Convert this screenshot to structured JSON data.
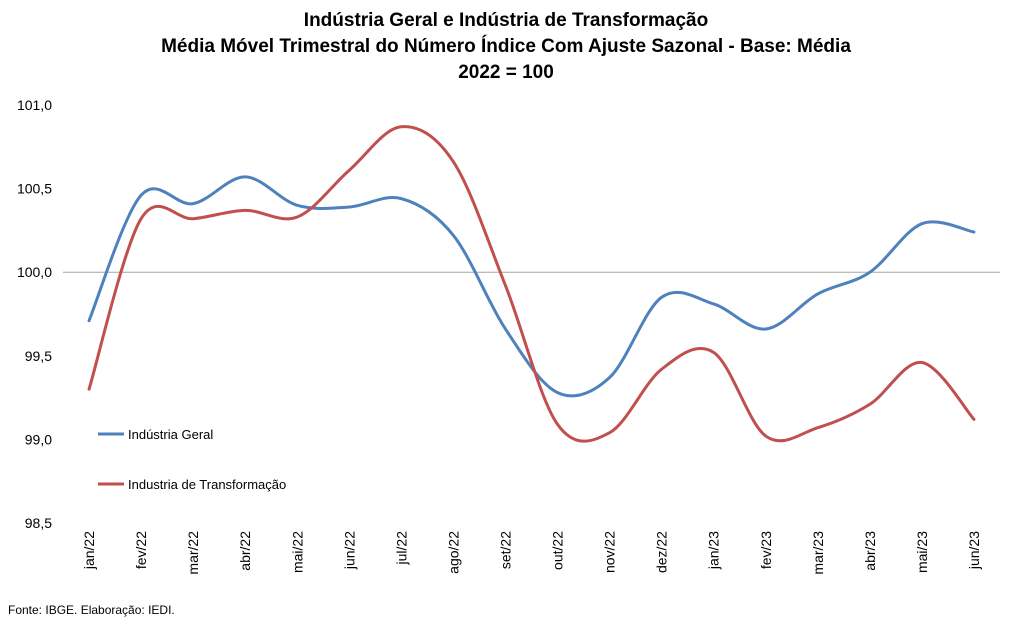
{
  "chart_data": {
    "type": "line",
    "title_lines": [
      "Indústria Geral e Indústria de Transformação",
      "Média Móvel Trimestral do Número Índice Com Ajuste Sazonal - Base: Média",
      "2022 = 100"
    ],
    "categories": [
      "jan/22",
      "fev/22",
      "mar/22",
      "abr/22",
      "mai/22",
      "jun/22",
      "jul/22",
      "ago/22",
      "set/22",
      "out/22",
      "nov/22",
      "dez/22",
      "jan/23",
      "fev/23",
      "mar/23",
      "abr/23",
      "mai/23",
      "jun/23"
    ],
    "series": [
      {
        "name": "Indústria Geral",
        "color": "#4F81BD",
        "values": [
          99.71,
          100.46,
          100.41,
          100.57,
          100.4,
          100.39,
          100.44,
          100.22,
          99.66,
          99.28,
          99.37,
          99.85,
          99.81,
          99.66,
          99.87,
          100.0,
          100.29,
          100.24
        ]
      },
      {
        "name": "Industria de Transformação",
        "color": "#C0504D",
        "values": [
          99.3,
          100.32,
          100.32,
          100.37,
          100.33,
          100.61,
          100.87,
          100.66,
          99.92,
          99.09,
          99.04,
          99.42,
          99.52,
          99.02,
          99.07,
          99.21,
          99.46,
          99.12
        ]
      }
    ],
    "ylim": [
      98.5,
      101.0
    ],
    "yticks": [
      "98,5",
      "99,0",
      "99,5",
      "100,0",
      "100,5",
      "101,0"
    ],
    "ytick_values": [
      98.5,
      99.0,
      99.5,
      100.0,
      100.5,
      101.0
    ],
    "reference_line": 100.0,
    "grid": false,
    "legend_position": "left-inside"
  },
  "source": "Fonte: IBGE. Elaboração: IEDI."
}
